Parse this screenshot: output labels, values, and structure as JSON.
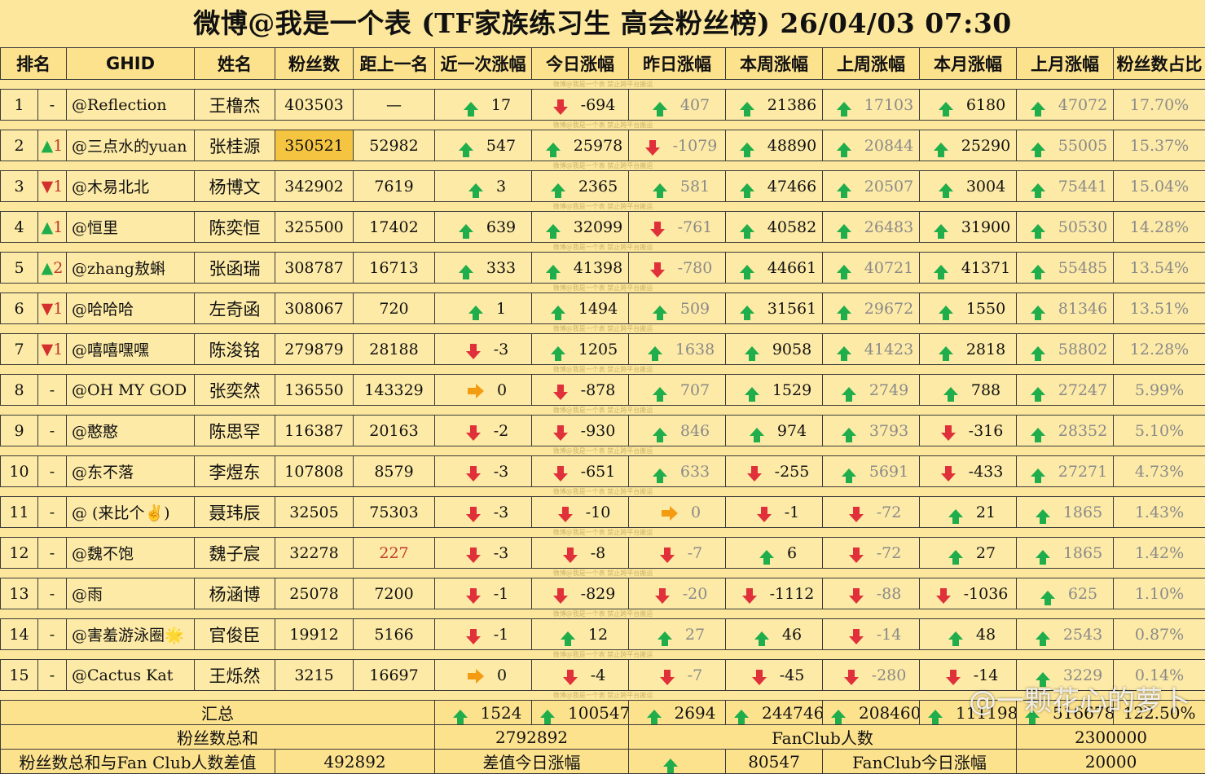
{
  "title": "微博@我是一个表 (TF家族练习生 高会粉丝榜)  26/04/03 07:30",
  "headers": [
    "排名",
    "GHID",
    "姓名",
    "粉丝数",
    "距上一名",
    "近一次涨幅",
    "今日涨幅",
    "昨日涨幅",
    "本周涨幅",
    "上周涨幅",
    "本月涨幅",
    "上月涨幅",
    "粉丝数占比"
  ],
  "rows": [
    {
      "rank": "1",
      "chg_dir": "",
      "chg": "-",
      "ghid": "@Reflection",
      "name": "王橹杰",
      "fans": "403503",
      "gap": "—",
      "recent": {
        "d": "up",
        "v": "17"
      },
      "today": {
        "d": "dn",
        "v": "-694"
      },
      "yest": {
        "d": "up",
        "v": "407"
      },
      "week": {
        "d": "up",
        "v": "21386"
      },
      "lweek": {
        "d": "up",
        "v": "17103"
      },
      "month": {
        "d": "up",
        "v": "6180"
      },
      "lmonth": {
        "d": "up",
        "v": "47072"
      },
      "pct": "17.70%"
    },
    {
      "rank": "2",
      "chg_dir": "up",
      "chg": "1",
      "ghid": "@三点水的yuan",
      "name": "张桂源",
      "fans": "350521",
      "gap": "52982",
      "recent": {
        "d": "up",
        "v": "547"
      },
      "today": {
        "d": "up",
        "v": "25978"
      },
      "yest": {
        "d": "dn",
        "v": "-1079"
      },
      "week": {
        "d": "up",
        "v": "48890"
      },
      "lweek": {
        "d": "up",
        "v": "20844"
      },
      "month": {
        "d": "up",
        "v": "25290"
      },
      "lmonth": {
        "d": "up",
        "v": "55005"
      },
      "pct": "15.37%"
    },
    {
      "rank": "3",
      "chg_dir": "dn",
      "chg": "1",
      "ghid": "@木易北北",
      "name": "杨博文",
      "fans": "342902",
      "gap": "7619",
      "recent": {
        "d": "up",
        "v": "3"
      },
      "today": {
        "d": "up",
        "v": "2365"
      },
      "yest": {
        "d": "up",
        "v": "581"
      },
      "week": {
        "d": "up",
        "v": "47466"
      },
      "lweek": {
        "d": "up",
        "v": "20507"
      },
      "month": {
        "d": "up",
        "v": "3004"
      },
      "lmonth": {
        "d": "up",
        "v": "75441"
      },
      "pct": "15.04%"
    },
    {
      "rank": "4",
      "chg_dir": "up",
      "chg": "1",
      "ghid": "@恒里",
      "name": "陈奕恒",
      "fans": "325500",
      "gap": "17402",
      "recent": {
        "d": "up",
        "v": "639"
      },
      "today": {
        "d": "up",
        "v": "32099"
      },
      "yest": {
        "d": "dn",
        "v": "-761"
      },
      "week": {
        "d": "up",
        "v": "40582"
      },
      "lweek": {
        "d": "up",
        "v": "26483"
      },
      "month": {
        "d": "up",
        "v": "31900"
      },
      "lmonth": {
        "d": "up",
        "v": "50530"
      },
      "pct": "14.28%"
    },
    {
      "rank": "5",
      "chg_dir": "up",
      "chg": "2",
      "ghid": "@zhang敖蝌",
      "name": "张函瑞",
      "fans": "308787",
      "gap": "16713",
      "recent": {
        "d": "up",
        "v": "333"
      },
      "today": {
        "d": "up",
        "v": "41398"
      },
      "yest": {
        "d": "dn",
        "v": "-780"
      },
      "week": {
        "d": "up",
        "v": "44661"
      },
      "lweek": {
        "d": "up",
        "v": "40721"
      },
      "month": {
        "d": "up",
        "v": "41371"
      },
      "lmonth": {
        "d": "up",
        "v": "55485"
      },
      "pct": "13.54%"
    },
    {
      "rank": "6",
      "chg_dir": "dn",
      "chg": "1",
      "ghid": "@哈哈哈",
      "name": "左奇函",
      "fans": "308067",
      "gap": "720",
      "recent": {
        "d": "up",
        "v": "1"
      },
      "today": {
        "d": "up",
        "v": "1494"
      },
      "yest": {
        "d": "up",
        "v": "509"
      },
      "week": {
        "d": "up",
        "v": "31561"
      },
      "lweek": {
        "d": "up",
        "v": "29672"
      },
      "month": {
        "d": "up",
        "v": "1550"
      },
      "lmonth": {
        "d": "up",
        "v": "81346"
      },
      "pct": "13.51%"
    },
    {
      "rank": "7",
      "chg_dir": "dn",
      "chg": "1",
      "ghid": "@嘻嘻嘿嘿",
      "name": "陈浚铭",
      "fans": "279879",
      "gap": "28188",
      "recent": {
        "d": "dn",
        "v": "-3"
      },
      "today": {
        "d": "up",
        "v": "1205"
      },
      "yest": {
        "d": "up",
        "v": "1638"
      },
      "week": {
        "d": "up",
        "v": "9058"
      },
      "lweek": {
        "d": "up",
        "v": "41423"
      },
      "month": {
        "d": "up",
        "v": "2818"
      },
      "lmonth": {
        "d": "up",
        "v": "58802"
      },
      "pct": "12.28%"
    },
    {
      "rank": "8",
      "chg_dir": "",
      "chg": "-",
      "ghid": "@OH MY GOD",
      "name": "张奕然",
      "fans": "136550",
      "gap": "143329",
      "recent": {
        "d": "rt",
        "v": "0"
      },
      "today": {
        "d": "dn",
        "v": "-878"
      },
      "yest": {
        "d": "up",
        "v": "707"
      },
      "week": {
        "d": "up",
        "v": "1529"
      },
      "lweek": {
        "d": "up",
        "v": "2749"
      },
      "month": {
        "d": "up",
        "v": "788"
      },
      "lmonth": {
        "d": "up",
        "v": "27247"
      },
      "pct": "5.99%"
    },
    {
      "rank": "9",
      "chg_dir": "",
      "chg": "-",
      "ghid": "@憨憨",
      "name": "陈思罕",
      "fans": "116387",
      "gap": "20163",
      "recent": {
        "d": "dn",
        "v": "-2"
      },
      "today": {
        "d": "dn",
        "v": "-930"
      },
      "yest": {
        "d": "up",
        "v": "846"
      },
      "week": {
        "d": "up",
        "v": "974"
      },
      "lweek": {
        "d": "up",
        "v": "3793"
      },
      "month": {
        "d": "dn",
        "v": "-316"
      },
      "lmonth": {
        "d": "up",
        "v": "28352"
      },
      "pct": "5.10%"
    },
    {
      "rank": "10",
      "chg_dir": "",
      "chg": "-",
      "ghid": "@东不落",
      "name": "李煜东",
      "fans": "107808",
      "gap": "8579",
      "recent": {
        "d": "dn",
        "v": "-3"
      },
      "today": {
        "d": "dn",
        "v": "-651"
      },
      "yest": {
        "d": "up",
        "v": "633"
      },
      "week": {
        "d": "dn",
        "v": "-255"
      },
      "lweek": {
        "d": "up",
        "v": "5691"
      },
      "month": {
        "d": "dn",
        "v": "-433"
      },
      "lmonth": {
        "d": "up",
        "v": "27271"
      },
      "pct": "4.73%"
    },
    {
      "rank": "11",
      "chg_dir": "",
      "chg": "-",
      "ghid": "@ (来比个✌)",
      "name": "聂玮辰",
      "fans": "32505",
      "gap": "75303",
      "recent": {
        "d": "dn",
        "v": "-3"
      },
      "today": {
        "d": "dn",
        "v": "-10"
      },
      "yest": {
        "d": "rt",
        "v": "0"
      },
      "week": {
        "d": "dn",
        "v": "-1"
      },
      "lweek": {
        "d": "dn",
        "v": "-72"
      },
      "month": {
        "d": "up",
        "v": "21"
      },
      "lmonth": {
        "d": "up",
        "v": "1865"
      },
      "pct": "1.43%"
    },
    {
      "rank": "12",
      "chg_dir": "",
      "chg": "-",
      "ghid": "@魏不饱",
      "name": "魏子宸",
      "fans": "32278",
      "gap": "227",
      "recent": {
        "d": "dn",
        "v": "-3"
      },
      "today": {
        "d": "dn",
        "v": "-8"
      },
      "yest": {
        "d": "dn",
        "v": "-7"
      },
      "week": {
        "d": "up",
        "v": "6"
      },
      "lweek": {
        "d": "dn",
        "v": "-72"
      },
      "month": {
        "d": "up",
        "v": "27"
      },
      "lmonth": {
        "d": "up",
        "v": "1865"
      },
      "pct": "1.42%"
    },
    {
      "rank": "13",
      "chg_dir": "",
      "chg": "-",
      "ghid": "@雨",
      "name": "杨涵博",
      "fans": "25078",
      "gap": "7200",
      "recent": {
        "d": "dn",
        "v": "-1"
      },
      "today": {
        "d": "dn",
        "v": "-829"
      },
      "yest": {
        "d": "dn",
        "v": "-20"
      },
      "week": {
        "d": "dn",
        "v": "-1112"
      },
      "lweek": {
        "d": "dn",
        "v": "-88"
      },
      "month": {
        "d": "dn",
        "v": "-1036"
      },
      "lmonth": {
        "d": "up",
        "v": "625"
      },
      "pct": "1.10%"
    },
    {
      "rank": "14",
      "chg_dir": "",
      "chg": "-",
      "ghid": "@害羞游泳圈🌟",
      "name": "官俊臣",
      "fans": "19912",
      "gap": "5166",
      "recent": {
        "d": "dn",
        "v": "-1"
      },
      "today": {
        "d": "up",
        "v": "12"
      },
      "yest": {
        "d": "up",
        "v": "27"
      },
      "week": {
        "d": "up",
        "v": "46"
      },
      "lweek": {
        "d": "dn",
        "v": "-14"
      },
      "month": {
        "d": "up",
        "v": "48"
      },
      "lmonth": {
        "d": "up",
        "v": "2543"
      },
      "pct": "0.87%"
    },
    {
      "rank": "15",
      "chg_dir": "",
      "chg": "-",
      "ghid": "@Cactus Kat",
      "name": "王烁然",
      "fans": "3215",
      "gap": "16697",
      "recent": {
        "d": "rt",
        "v": "0"
      },
      "today": {
        "d": "dn",
        "v": "-4"
      },
      "yest": {
        "d": "dn",
        "v": "-7"
      },
      "week": {
        "d": "dn",
        "v": "-45"
      },
      "lweek": {
        "d": "dn",
        "v": "-280"
      },
      "month": {
        "d": "dn",
        "v": "-14"
      },
      "lmonth": {
        "d": "up",
        "v": "3229"
      },
      "pct": "0.14%"
    }
  ],
  "summary": {
    "label": "汇总",
    "recent": "1524",
    "today": "100547",
    "yest": "2694",
    "week": "244746",
    "lweek": "208460",
    "month": "111198",
    "lmonth": "516678",
    "pct": "122.50%"
  },
  "totals": {
    "fans_total_label": "粉丝数总和",
    "fans_total": "2792892",
    "fanclub_label": "FanClub人数",
    "fanclub": "2300000",
    "diff_label": "粉丝数总和与Fan Club人数差值",
    "diff": "492892",
    "diff_today_label": "差值今日涨幅",
    "diff_today": "80547",
    "fanclub_today_label": "FanClub今日涨幅",
    "fanclub_today": "20000"
  },
  "row_watermark": "微博@我是一个表    禁止跨平台搬运",
  "corner_watermark": "@一颗花心的萝卜",
  "colors": {
    "bg": "#fbe69a",
    "up": "#1fae4b",
    "down": "#e0303a",
    "flat": "#f39c12",
    "highlight": "#f5c542"
  }
}
